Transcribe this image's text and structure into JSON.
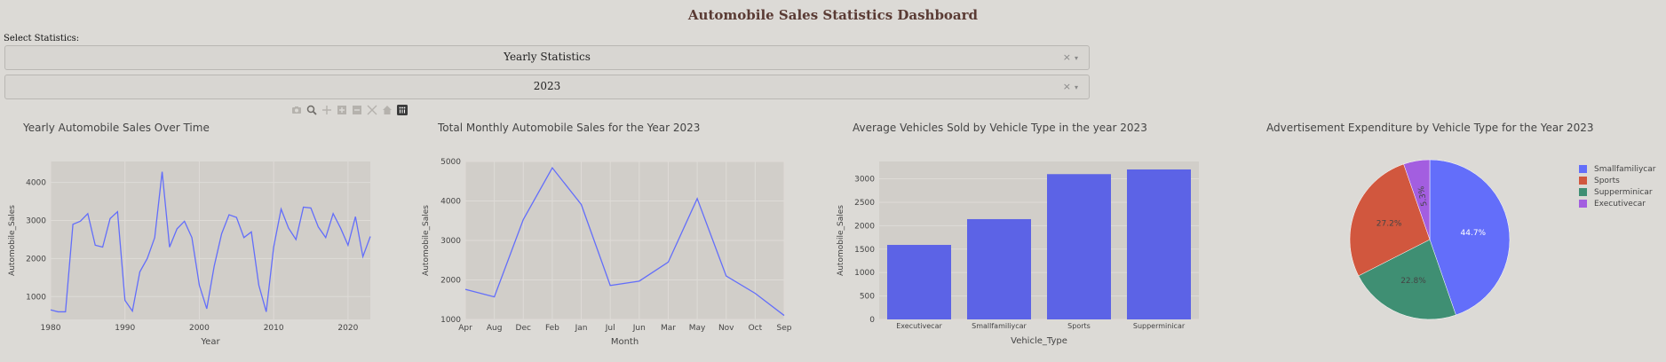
{
  "header": {
    "title": "Automobile Sales Statistics Dashboard"
  },
  "controls": {
    "select_label": "Select Statistics:",
    "stat_dropdown": {
      "value": "Yearly Statistics"
    },
    "year_dropdown": {
      "value": "2023"
    },
    "clear_glyph": "×",
    "arrow_glyph": "▾"
  },
  "modebar_icons": [
    "camera-icon",
    "zoom-icon",
    "pan-icon",
    "zoom-in-icon",
    "zoom-out-icon",
    "autoscale-icon",
    "home-icon",
    "plotly-logo-icon"
  ],
  "colors": {
    "line": "#636efa",
    "bar": "#5c63e6",
    "plot_bg": "#d1cec9",
    "grid": "#dedbd7"
  },
  "chart_data": [
    {
      "type": "line",
      "title": "Yearly Automobile Sales Over Time",
      "xlabel": "Year",
      "ylabel": "Automobile_Sales",
      "xlim": [
        1980,
        2023
      ],
      "ylim": [
        400,
        4550
      ],
      "xticks": [
        1980,
        1990,
        2000,
        2010,
        2020
      ],
      "yticks": [
        1000,
        2000,
        3000,
        4000
      ],
      "x": [
        1980,
        1981,
        1982,
        1983,
        1984,
        1985,
        1986,
        1987,
        1988,
        1989,
        1990,
        1991,
        1992,
        1993,
        1994,
        1995,
        1996,
        1997,
        1998,
        1999,
        2000,
        2001,
        2002,
        2003,
        2004,
        2005,
        2006,
        2007,
        2008,
        2009,
        2010,
        2011,
        2012,
        2013,
        2014,
        2015,
        2016,
        2017,
        2018,
        2019,
        2020,
        2021,
        2022,
        2023
      ],
      "y": [
        650,
        600,
        600,
        2900,
        2980,
        3180,
        2350,
        2300,
        3050,
        3230,
        900,
        620,
        1650,
        2000,
        2550,
        4280,
        2300,
        2780,
        2980,
        2550,
        1300,
        680,
        1800,
        2650,
        3150,
        3080,
        2550,
        2700,
        1300,
        600,
        2300,
        3300,
        2800,
        2500,
        3350,
        3330,
        2830,
        2550,
        3180,
        2800,
        2350,
        3100,
        2050,
        2580
      ]
    },
    {
      "type": "line",
      "title": "Total Monthly Automobile Sales for the Year 2023",
      "xlabel": "Month",
      "ylabel": "Automobile_Sales",
      "categories": [
        "Apr",
        "Aug",
        "Dec",
        "Feb",
        "Jan",
        "Jul",
        "Jun",
        "Mar",
        "May",
        "Nov",
        "Oct",
        "Sep"
      ],
      "values": [
        1760,
        1570,
        3530,
        4840,
        3910,
        1860,
        1970,
        2450,
        4060,
        2100,
        1660,
        1100
      ],
      "ylim": [
        1000,
        5000
      ],
      "yticks": [
        1000,
        2000,
        3000,
        4000,
        5000
      ]
    },
    {
      "type": "bar",
      "title": "Average Vehicles Sold by Vehicle Type in the year 2023",
      "xlabel": "Vehicle_Type",
      "ylabel": "Automobile_Sales",
      "categories": [
        "Executivecar",
        "Smallfamiliycar",
        "Sports",
        "Supperminicar"
      ],
      "values": [
        1590,
        2140,
        3100,
        3200
      ],
      "ylim": [
        0,
        3370
      ],
      "yticks": [
        0,
        500,
        1000,
        1500,
        2000,
        2500,
        3000
      ]
    },
    {
      "type": "pie",
      "title": "Advertisement Expenditure by Vehicle Type for the Year 2023",
      "labels": [
        "Smallfamiliycar",
        "Supperminicar",
        "Sports",
        "Executivecar"
      ],
      "values": [
        44.7,
        22.8,
        27.2,
        5.3
      ],
      "value_labels": [
        "44.7%",
        "22.8%",
        "27.2%",
        "5.3%"
      ],
      "colors": [
        "#636efa",
        "#3f8f73",
        "#d1573e",
        "#a35ee0"
      ],
      "legend": [
        {
          "name": "Smallfamiliycar",
          "color": "#636efa"
        },
        {
          "name": "Sports",
          "color": "#d1573e"
        },
        {
          "name": "Supperminicar",
          "color": "#3f8f73"
        },
        {
          "name": "Executivecar",
          "color": "#a35ee0"
        }
      ]
    }
  ]
}
